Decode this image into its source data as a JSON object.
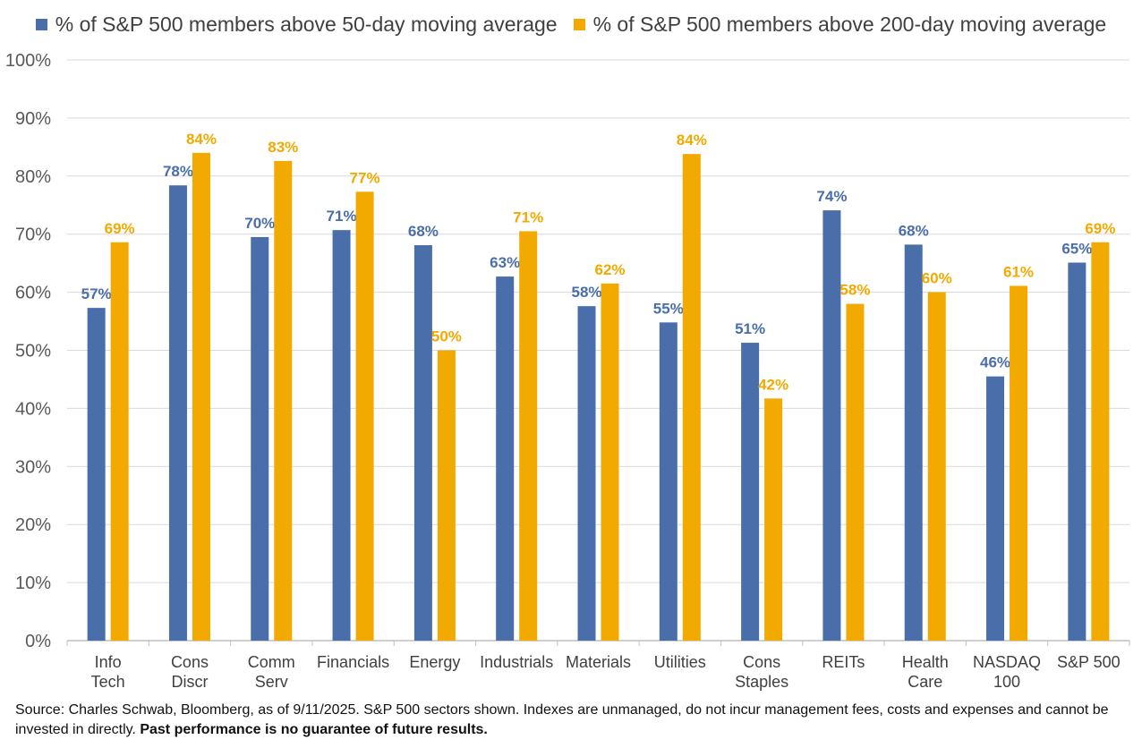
{
  "chart_data": {
    "type": "bar",
    "title": "",
    "xlabel": "",
    "ylabel": "",
    "ylim": [
      0,
      100
    ],
    "yticks": [
      "0%",
      "10%",
      "20%",
      "30%",
      "40%",
      "50%",
      "60%",
      "70%",
      "80%",
      "90%",
      "100%"
    ],
    "grid": true,
    "legend_position": "top",
    "categories": [
      [
        "Info",
        "Tech"
      ],
      [
        "Cons",
        "Discr"
      ],
      [
        "Comm",
        "Serv"
      ],
      [
        "Financials"
      ],
      [
        "Energy"
      ],
      [
        "Industrials"
      ],
      [
        "Materials"
      ],
      [
        "Utilities"
      ],
      [
        "Cons",
        "Staples"
      ],
      [
        "REITs"
      ],
      [
        "Health",
        "Care"
      ],
      [
        "NASDAQ",
        "100"
      ],
      [
        "S&P 500"
      ]
    ],
    "series": [
      {
        "name": "% of S&P 500 members above 50-day moving average",
        "color": "#4a6ea9",
        "values": [
          57.3,
          78.4,
          69.5,
          70.7,
          68.1,
          62.7,
          57.6,
          54.8,
          51.3,
          74.1,
          68.2,
          45.5,
          65.1
        ],
        "labels": [
          "57%",
          "78%",
          "70%",
          "71%",
          "68%",
          "63%",
          "58%",
          "55%",
          "51%",
          "74%",
          "68%",
          "46%",
          "65%"
        ]
      },
      {
        "name": "% of S&P 500 members above 200-day moving average",
        "color": "#f2a900",
        "values": [
          68.6,
          84.0,
          82.6,
          77.3,
          50.0,
          70.5,
          61.5,
          83.8,
          41.7,
          58.0,
          60.0,
          61.1,
          68.6
        ],
        "labels": [
          "69%",
          "84%",
          "83%",
          "77%",
          "50%",
          "71%",
          "62%",
          "84%",
          "42%",
          "58%",
          "60%",
          "61%",
          "69%"
        ]
      }
    ]
  },
  "source": {
    "text": "Source: Charles Schwab, Bloomberg, as of 9/11/2025.  S&P 500 sectors shown. Indexes are unmanaged, do not incur management fees, costs and expenses and cannot be invested in directly. ",
    "disclaimer": "Past performance is no guarantee of future results."
  }
}
